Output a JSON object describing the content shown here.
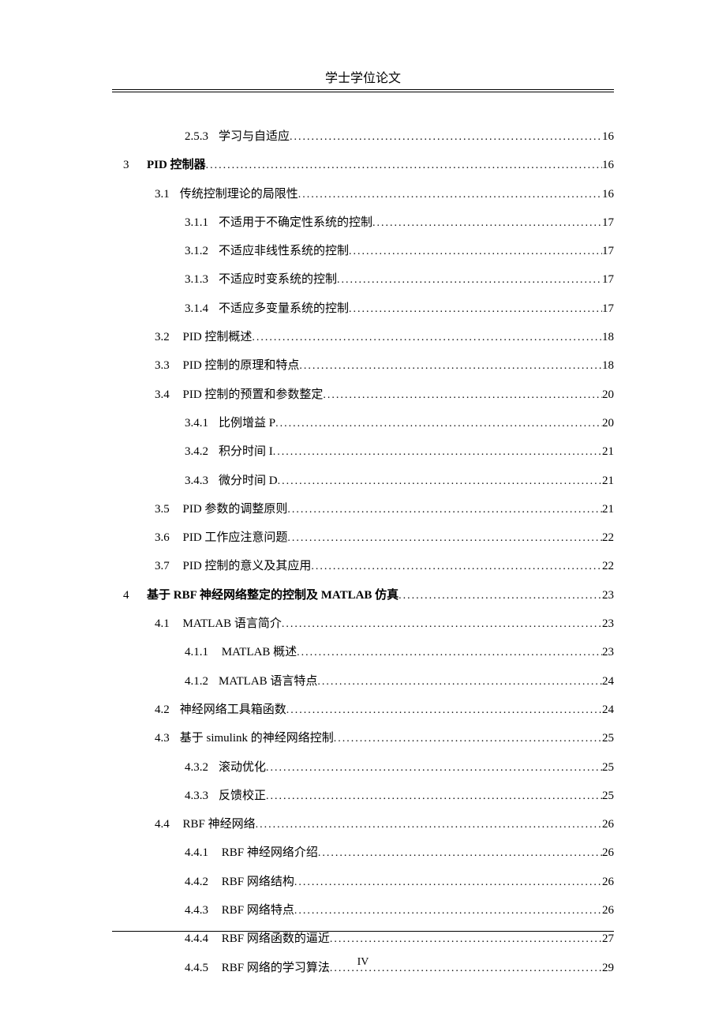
{
  "header": {
    "title": "学士学位论文"
  },
  "toc": {
    "entries": [
      {
        "level": 3,
        "number": "2.5.3",
        "title": "学习与自适应",
        "page": "16"
      },
      {
        "level": 1,
        "number": "3",
        "title": "PID 控制器",
        "page": "16",
        "bold": true
      },
      {
        "level": 2,
        "number": "3.1",
        "title": "传统控制理论的局限性",
        "page": "16"
      },
      {
        "level": 3,
        "number": "3.1.1",
        "title": "不适用于不确定性系统的控制",
        "page": "17"
      },
      {
        "level": 3,
        "number": "3.1.2",
        "title": "不适应非线性系统的控制",
        "page": "17"
      },
      {
        "level": 3,
        "number": "3.1.3",
        "title": "不适应时变系统的控制",
        "page": "17"
      },
      {
        "level": 3,
        "number": "3.1.4",
        "title": "不适应多变量系统的控制",
        "page": "17"
      },
      {
        "level": 2,
        "number": "3.2",
        "title": " PID 控制概述",
        "page": "18"
      },
      {
        "level": 2,
        "number": "3.3",
        "title": " PID 控制的原理和特点",
        "page": "18"
      },
      {
        "level": 2,
        "number": "3.4",
        "title": " PID 控制的预置和参数整定",
        "page": "20"
      },
      {
        "level": 3,
        "number": "3.4.1",
        "title": "比例增益 P",
        "page": "20"
      },
      {
        "level": 3,
        "number": "3.4.2",
        "title": "积分时间 I",
        "page": "21"
      },
      {
        "level": 3,
        "number": "3.4.3",
        "title": "微分时间 D",
        "page": "21"
      },
      {
        "level": 2,
        "number": "3.5",
        "title": " PID 参数的调整原则",
        "page": "21"
      },
      {
        "level": 2,
        "number": "3.6",
        "title": " PID 工作应注意问题",
        "page": "22"
      },
      {
        "level": 2,
        "number": "3.7",
        "title": " PID 控制的意义及其应用",
        "page": "22"
      },
      {
        "level": 1,
        "number": "4",
        "title": "基于 RBF 神经网络整定的控制及 MATLAB 仿真",
        "page": "23",
        "bold": true
      },
      {
        "level": 2,
        "number": "4.1",
        "title": " MATLAB 语言简介",
        "page": "23"
      },
      {
        "level": 3,
        "number": "4.1.1",
        "title": " MATLAB 概述",
        "page": "23"
      },
      {
        "level": 3,
        "number": "4.1.2",
        "title": "MATLAB 语言特点",
        "page": "24"
      },
      {
        "level": 2,
        "number": "4.2",
        "title": "神经网络工具箱函数",
        "page": "24"
      },
      {
        "level": 2,
        "number": "4.3",
        "title": "基于 simulink 的神经网络控制",
        "page": "25"
      },
      {
        "level": 3,
        "number": "4.3.2",
        "title": "滚动优化",
        "page": "25"
      },
      {
        "level": 3,
        "number": "4.3.3",
        "title": "反馈校正",
        "page": "25"
      },
      {
        "level": 2,
        "number": "4.4",
        "title": " RBF 神经网络",
        "page": "26"
      },
      {
        "level": 3,
        "number": "4.4.1",
        "title": " RBF 神经网络介绍",
        "page": "26"
      },
      {
        "level": 3,
        "number": "4.4.2",
        "title": " RBF 网络结构",
        "page": "26"
      },
      {
        "level": 3,
        "number": "4.4.3",
        "title": " RBF 网络特点",
        "page": "26"
      },
      {
        "level": 3,
        "number": "4.4.4",
        "title": " RBF 网络函数的逼近",
        "page": "27"
      },
      {
        "level": 3,
        "number": "4.4.5",
        "title": " RBF 网络的学习算法",
        "page": "29"
      }
    ]
  },
  "footer": {
    "page_number": "IV"
  }
}
